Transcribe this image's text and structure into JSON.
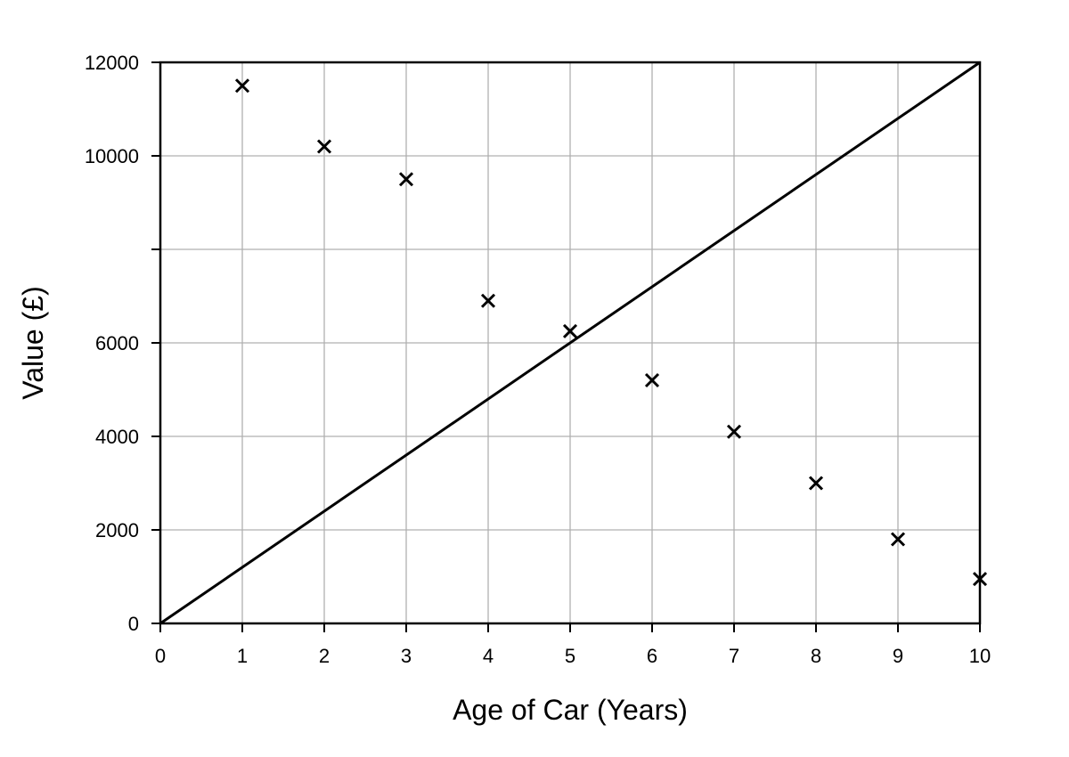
{
  "chart_data": {
    "type": "scatter",
    "title": "",
    "xlabel": "Age of Car (Years)",
    "ylabel": "Value (£)",
    "xlim": [
      0,
      10
    ],
    "ylim": [
      0,
      12000
    ],
    "x_ticks": [
      0,
      1,
      2,
      3,
      4,
      5,
      6,
      7,
      8,
      9,
      10
    ],
    "y_ticks": [
      0,
      2000,
      4000,
      6000,
      8000,
      10000,
      12000
    ],
    "x_tick_labels": [
      "0",
      "1",
      "2",
      "3",
      "4",
      "5",
      "6",
      "7",
      "8",
      "9",
      "10"
    ],
    "y_tick_labels": [
      "0",
      "2000",
      "4000",
      "6000",
      "",
      "10000",
      "12000"
    ],
    "grid": true,
    "legend": "none",
    "marker": "x",
    "series": [
      {
        "points": [
          {
            "x": 1,
            "y": 11500
          },
          {
            "x": 2,
            "y": 10200
          },
          {
            "x": 3,
            "y": 9500
          },
          {
            "x": 4,
            "y": 6900
          },
          {
            "x": 5,
            "y": 6250
          },
          {
            "x": 6,
            "y": 5200
          },
          {
            "x": 7,
            "y": 4100
          },
          {
            "x": 8,
            "y": 3000
          },
          {
            "x": 9,
            "y": 1800
          },
          {
            "x": 10,
            "y": 950
          }
        ]
      }
    ],
    "lines": [
      {
        "from": {
          "x": 0,
          "y": 0
        },
        "to": {
          "x": 10,
          "y": 12000
        }
      }
    ],
    "colors": {
      "marks": "#000000",
      "grid": "#b0b0b0",
      "frame": "#000000"
    }
  }
}
